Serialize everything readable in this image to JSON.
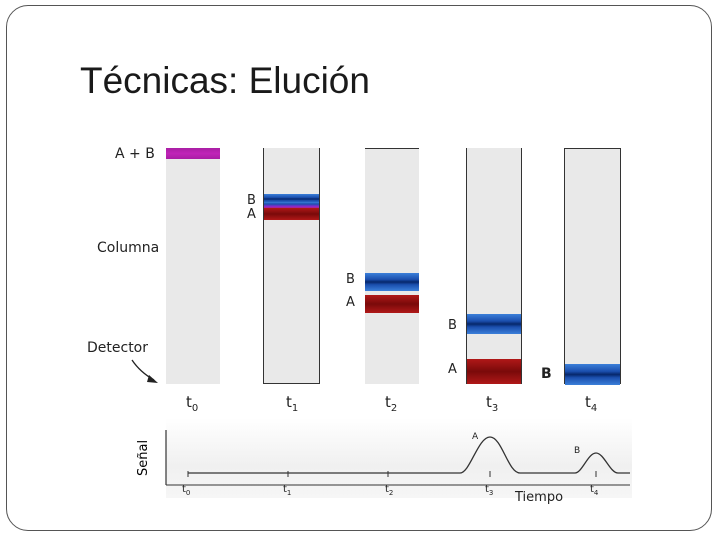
{
  "slide": {
    "title": "Técnicas: Elución"
  },
  "diagram": {
    "labels": {
      "mixture": "A + B",
      "column": "Columna",
      "detector": "Detector",
      "signal": "Señal",
      "time": "Tiempo"
    },
    "stages": [
      {
        "time": "t",
        "sub": "0",
        "bands": [
          "A+B"
        ]
      },
      {
        "time": "t",
        "sub": "1",
        "bands": [
          "B",
          "A"
        ]
      },
      {
        "time": "t",
        "sub": "2",
        "bands": [
          "B",
          "A"
        ]
      },
      {
        "time": "t",
        "sub": "3",
        "bands": [
          "B",
          "A"
        ]
      },
      {
        "time": "t",
        "sub": "4",
        "bands": [
          "B"
        ]
      }
    ],
    "band_labels": {
      "a": "A",
      "b": "B"
    },
    "chromatogram_ticks": [
      {
        "t": "t",
        "sub": "0"
      },
      {
        "t": "t",
        "sub": "1"
      },
      {
        "t": "t",
        "sub": "2"
      },
      {
        "t": "t",
        "sub": "3"
      },
      {
        "t": "t",
        "sub": "4"
      }
    ],
    "peaks": {
      "a": "A",
      "b": "B"
    },
    "colors": {
      "purple": "#b021a8",
      "blue": "#1b4fae",
      "red": "#8a0c0c",
      "column": "#e9e9e9"
    }
  }
}
